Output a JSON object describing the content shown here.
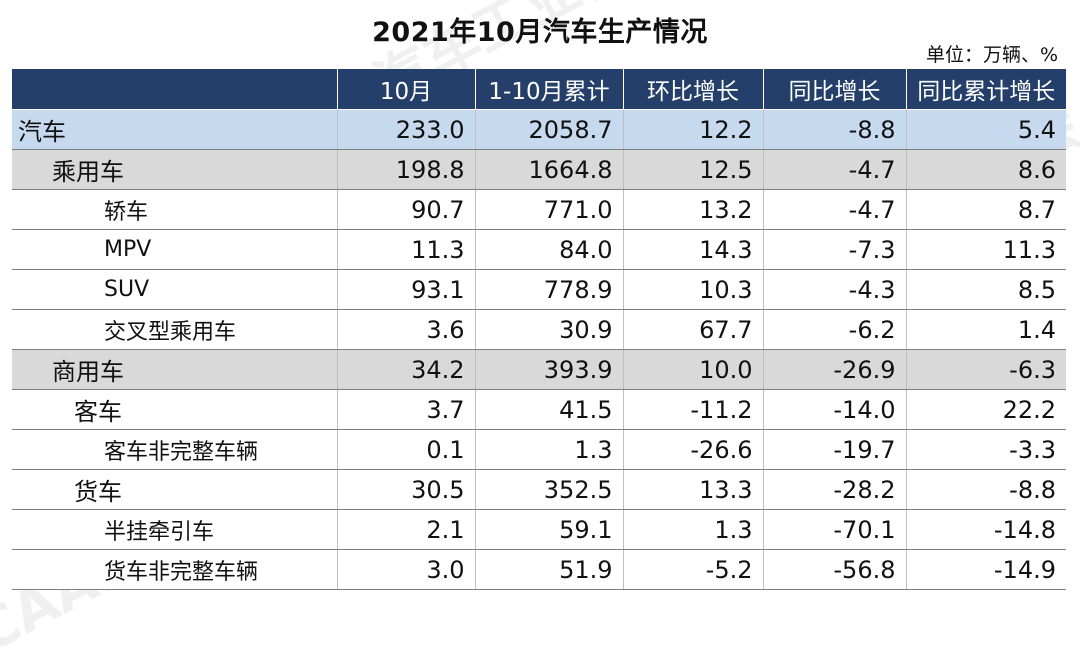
{
  "title": "2021年10月汽车生产情况",
  "unit": "单位：万辆、%",
  "headers": [
    "",
    "10月",
    "1-10月累计",
    "环比增长",
    "同比增长",
    "同比累计增长"
  ],
  "rows": [
    {
      "name": "汽车",
      "level": 0,
      "values": [
        "233.0",
        "2058.7",
        "12.2",
        "-8.8",
        "5.4"
      ]
    },
    {
      "name": "乘用车",
      "level": 1,
      "values": [
        "198.8",
        "1664.8",
        "12.5",
        "-4.7",
        "8.6"
      ]
    },
    {
      "name": "轿车",
      "level": 3,
      "values": [
        "90.7",
        "771.0",
        "13.2",
        "-4.7",
        "8.7"
      ]
    },
    {
      "name": "MPV",
      "level": 3,
      "values": [
        "11.3",
        "84.0",
        "14.3",
        "-7.3",
        "11.3"
      ]
    },
    {
      "name": "SUV",
      "level": 3,
      "values": [
        "93.1",
        "778.9",
        "10.3",
        "-4.3",
        "8.5"
      ]
    },
    {
      "name": "交叉型乘用车",
      "level": 3,
      "values": [
        "3.6",
        "30.9",
        "67.7",
        "-6.2",
        "1.4"
      ]
    },
    {
      "name": "商用车",
      "level": 1,
      "values": [
        "34.2",
        "393.9",
        "10.0",
        "-26.9",
        "-6.3"
      ]
    },
    {
      "name": "客车",
      "level": 2,
      "values": [
        "3.7",
        "41.5",
        "-11.2",
        "-14.0",
        "22.2"
      ]
    },
    {
      "name": "客车非完整车辆",
      "level": 3,
      "values": [
        "0.1",
        "1.3",
        "-26.6",
        "-19.7",
        "-3.3"
      ]
    },
    {
      "name": "货车",
      "level": 2,
      "values": [
        "30.5",
        "352.5",
        "13.3",
        "-28.2",
        "-8.8"
      ]
    },
    {
      "name": "半挂牵引车",
      "level": 3,
      "values": [
        "2.1",
        "59.1",
        "1.3",
        "-70.1",
        "-14.8"
      ]
    },
    {
      "name": "货车非完整车辆",
      "level": 3,
      "values": [
        "3.0",
        "51.9",
        "-5.2",
        "-56.8",
        "-14.9"
      ]
    }
  ],
  "colors": {
    "header_bg": "#243f6a",
    "level0_bg": "#c6d9ee",
    "level1_bg": "#d9d9d9"
  }
}
